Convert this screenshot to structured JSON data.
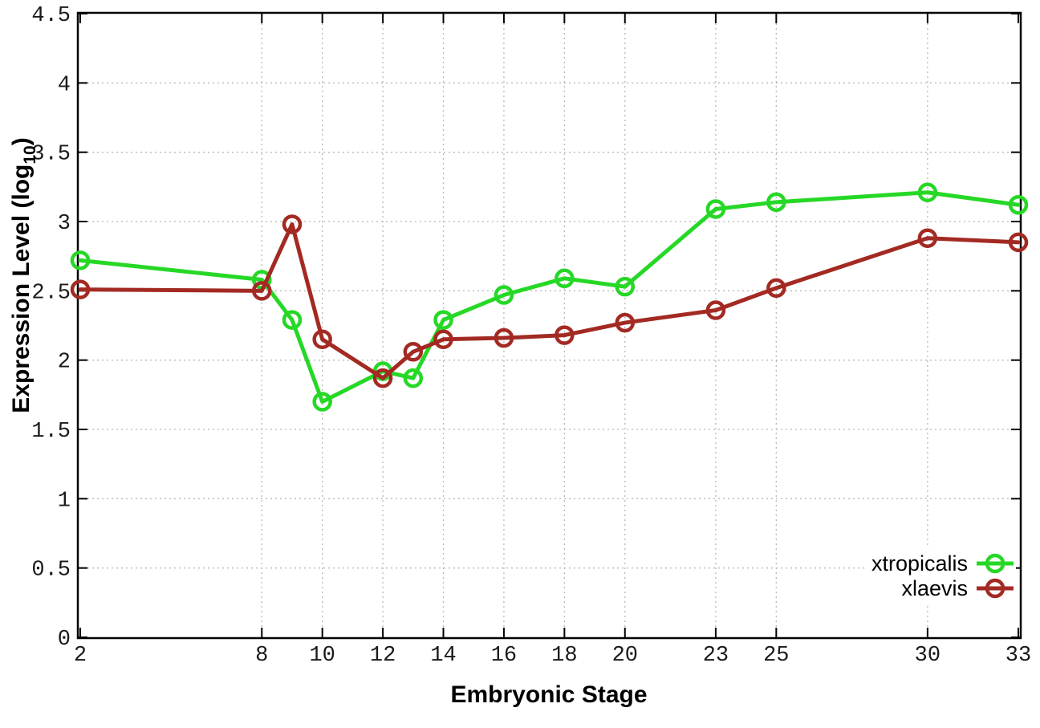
{
  "chart_data": {
    "type": "line",
    "title": "",
    "xlabel": "Embryonic Stage",
    "ylabel": "Expression Level (log10)",
    "ylabel_main": "Expression Level (log",
    "ylabel_sub": "10",
    "ylabel_close": ")",
    "xlim": [
      2,
      33
    ],
    "ylim": [
      0,
      4.5
    ],
    "grid": true,
    "legend_position": "bottom-right",
    "x_ticks": [
      2,
      8,
      10,
      12,
      14,
      16,
      18,
      20,
      23,
      25,
      30,
      33
    ],
    "y_ticks": [
      0,
      0.5,
      1,
      1.5,
      2,
      2.5,
      3,
      3.5,
      4,
      4.5
    ],
    "y_tick_labels": [
      "0",
      "0.5",
      "1",
      "1.5",
      "2",
      "2.5",
      "3",
      "3.5",
      "4",
      "4.5"
    ],
    "x": [
      2,
      8,
      9,
      10,
      12,
      13,
      14,
      16,
      18,
      20,
      23,
      25,
      30,
      33
    ],
    "series": [
      {
        "name": "xtropicalis",
        "color": "#26d826",
        "values": [
          2.72,
          2.58,
          2.29,
          1.7,
          1.92,
          1.87,
          2.29,
          2.47,
          2.59,
          2.53,
          3.09,
          3.14,
          3.21,
          3.12
        ]
      },
      {
        "name": "xlaevis",
        "color": "#a32a23",
        "values": [
          2.51,
          2.5,
          2.98,
          2.15,
          1.87,
          2.06,
          2.15,
          2.16,
          2.18,
          2.27,
          2.36,
          2.52,
          2.88,
          2.85
        ]
      }
    ],
    "colors": {
      "grid": "#b8b8b8",
      "axis": "#000000"
    }
  }
}
